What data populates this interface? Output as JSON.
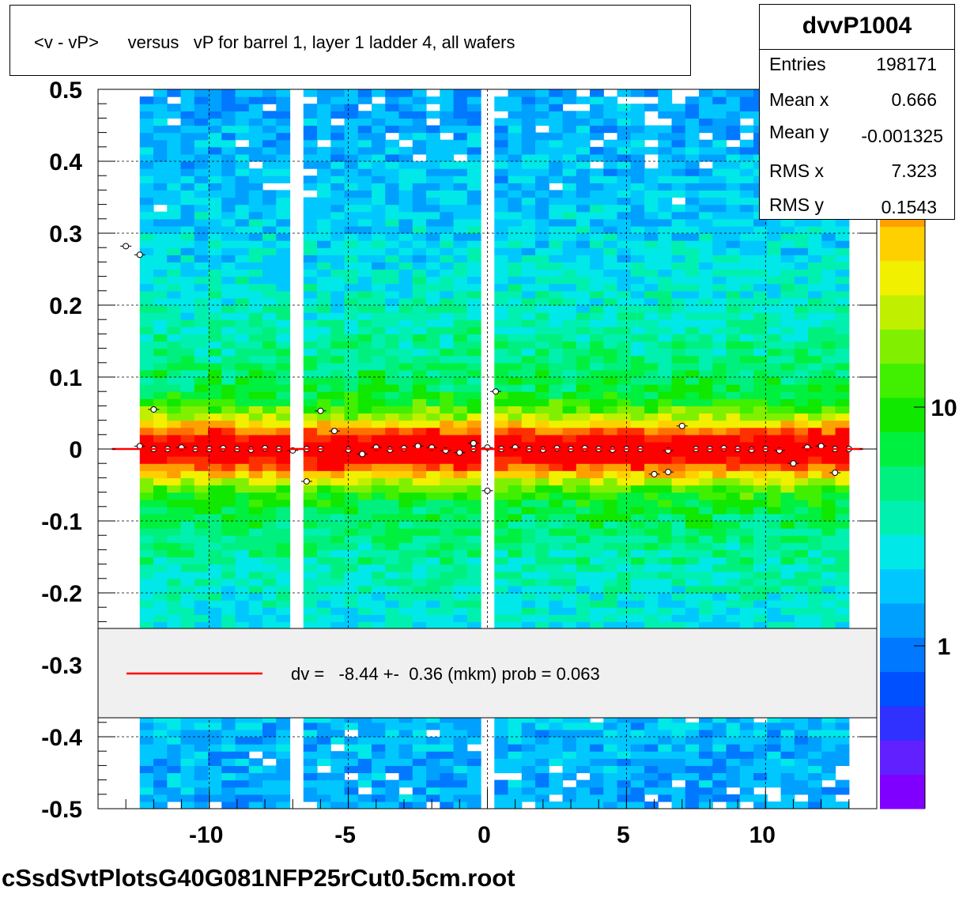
{
  "title": "<v - vP>      versus   vP for barrel 1, layer 1 ladder 4, all wafers",
  "footer": "cSsdSvtPlotsG40G081NFP25rCut0.5cm.root",
  "stats": {
    "name": "dvvP1004",
    "rows": [
      {
        "key": "Entries",
        "value": "198171"
      },
      {
        "key": "Mean x",
        "value": "0.666"
      },
      {
        "key": "Mean y",
        "value": "-0.001325"
      },
      {
        "key": "RMS x",
        "value": "7.323"
      },
      {
        "key": "RMS y",
        "value": "0.1543"
      }
    ]
  },
  "legend": {
    "text": "dv =   -8.44 +-  0.36 (mkm) prob = 0.063",
    "line_color": "#ff0000"
  },
  "chart_data": {
    "type": "heatmap",
    "title": "<v - vP>      versus   vP for barrel 1, layer 1 ladder 4, all wafers",
    "xlabel": "",
    "ylabel": "",
    "xlim": [
      -14,
      14
    ],
    "ylim": [
      -0.5,
      0.5
    ],
    "x_ticks": [
      "-10",
      "-5",
      "0",
      "5",
      "10"
    ],
    "y_ticks": [
      "0.5",
      "0.4",
      "0.3",
      "0.2",
      "0.1",
      "0",
      "-0.1",
      "-0.2",
      "-0.3",
      "-0.4",
      "-0.5"
    ],
    "z_scale": "log",
    "z_ticks": [
      "1",
      "10"
    ],
    "grid": true,
    "palette": [
      "#7f00ff",
      "#6020ff",
      "#3030ff",
      "#0050ff",
      "#0078ff",
      "#00a0ff",
      "#00c8ff",
      "#00e8e8",
      "#00f0b0",
      "#00f080",
      "#00f040",
      "#10e800",
      "#40f000",
      "#80f000",
      "#c0f000",
      "#f0f000",
      "#ffd000",
      "#ffa000",
      "#ff7000",
      "#ff3000",
      "#ff0000"
    ],
    "x_filled_range": [
      -12.5,
      13.0
    ],
    "empty_x_bands": [
      [
        -13.3,
        -12.5
      ],
      [
        -6.9,
        -6.5
      ],
      [
        -0.3,
        0.2
      ]
    ],
    "low_density_x_bands": [
      [
        -6.3,
        -5.9
      ],
      [
        5.9,
        6.3
      ]
    ],
    "profile_points": [
      {
        "x": -13.0,
        "y": 0.282
      },
      {
        "x": -12.5,
        "y": 0.27
      },
      {
        "x": -12.5,
        "y": 0.004
      },
      {
        "x": -12.0,
        "y": 0.055
      },
      {
        "x": -12.0,
        "y": 0.0
      },
      {
        "x": -11.5,
        "y": 0.0
      },
      {
        "x": -11.0,
        "y": 0.002
      },
      {
        "x": -10.5,
        "y": 0.0
      },
      {
        "x": -10.0,
        "y": 0.0
      },
      {
        "x": -9.5,
        "y": 0.001
      },
      {
        "x": -9.0,
        "y": 0.0
      },
      {
        "x": -8.5,
        "y": -0.001
      },
      {
        "x": -8.0,
        "y": 0.001
      },
      {
        "x": -7.5,
        "y": 0.0
      },
      {
        "x": -7.0,
        "y": -0.002
      },
      {
        "x": -6.5,
        "y": -0.045
      },
      {
        "x": -6.5,
        "y": 0.0
      },
      {
        "x": -6.0,
        "y": 0.053
      },
      {
        "x": -6.0,
        "y": 0.0
      },
      {
        "x": -5.5,
        "y": 0.025
      },
      {
        "x": -5.0,
        "y": -0.001
      },
      {
        "x": -4.5,
        "y": -0.007
      },
      {
        "x": -4.0,
        "y": 0.002
      },
      {
        "x": -3.5,
        "y": -0.001
      },
      {
        "x": -3.0,
        "y": 0.001
      },
      {
        "x": -2.5,
        "y": 0.004
      },
      {
        "x": -2.0,
        "y": 0.002
      },
      {
        "x": -1.5,
        "y": -0.002
      },
      {
        "x": -1.0,
        "y": -0.005
      },
      {
        "x": -0.5,
        "y": 0.008
      },
      {
        "x": -0.5,
        "y": 0.0
      },
      {
        "x": 0.0,
        "y": 0.002
      },
      {
        "x": 0.0,
        "y": -0.058
      },
      {
        "x": 0.3,
        "y": 0.08
      },
      {
        "x": 0.5,
        "y": 0.0
      },
      {
        "x": 1.0,
        "y": 0.002
      },
      {
        "x": 1.5,
        "y": 0.0
      },
      {
        "x": 2.0,
        "y": -0.001
      },
      {
        "x": 2.5,
        "y": 0.001
      },
      {
        "x": 3.0,
        "y": 0.0
      },
      {
        "x": 3.5,
        "y": 0.001
      },
      {
        "x": 4.0,
        "y": 0.0
      },
      {
        "x": 4.5,
        "y": -0.001
      },
      {
        "x": 5.0,
        "y": 0.0
      },
      {
        "x": 5.5,
        "y": 0.0
      },
      {
        "x": 6.0,
        "y": -0.035
      },
      {
        "x": 6.5,
        "y": -0.032
      },
      {
        "x": 6.5,
        "y": -0.002
      },
      {
        "x": 7.0,
        "y": 0.032
      },
      {
        "x": 7.5,
        "y": 0.0
      },
      {
        "x": 8.0,
        "y": 0.0
      },
      {
        "x": 8.5,
        "y": 0.001
      },
      {
        "x": 9.0,
        "y": 0.0
      },
      {
        "x": 9.5,
        "y": -0.001
      },
      {
        "x": 10.0,
        "y": 0.0
      },
      {
        "x": 10.5,
        "y": -0.002
      },
      {
        "x": 11.0,
        "y": -0.02
      },
      {
        "x": 11.5,
        "y": 0.002
      },
      {
        "x": 12.0,
        "y": 0.004
      },
      {
        "x": 12.5,
        "y": -0.033
      },
      {
        "x": 12.5,
        "y": 0.0
      },
      {
        "x": 13.0,
        "y": 0.0
      }
    ],
    "fit_line": {
      "x": [
        -13.5,
        13.5
      ],
      "y": [
        -8.44e-06,
        -8.44e-06
      ],
      "color": "#ff0000"
    }
  }
}
